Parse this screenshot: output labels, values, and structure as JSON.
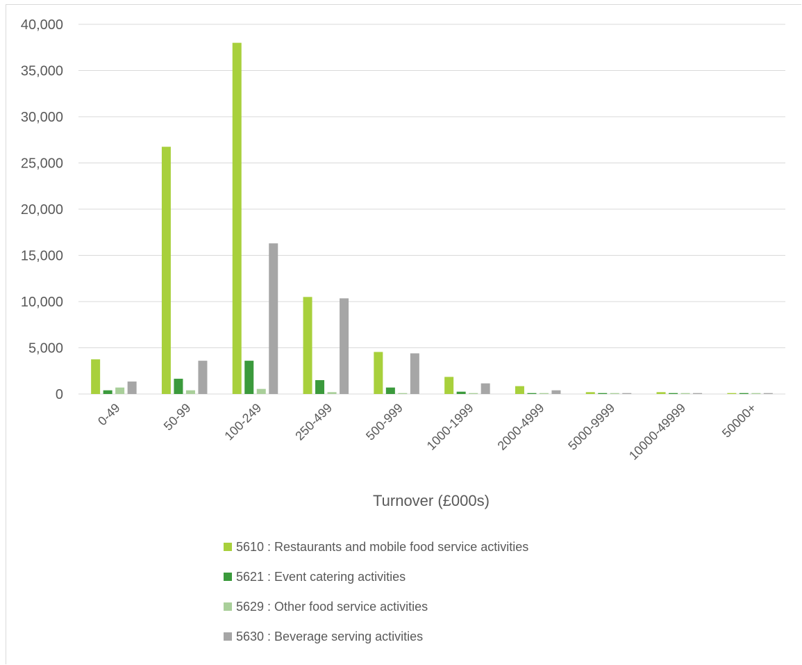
{
  "chart_data": {
    "type": "bar",
    "xlabel": "Turnover (£000s)",
    "ylabel": "",
    "title": "",
    "ylim": [
      0,
      40000
    ],
    "yticks": [
      0,
      5000,
      10000,
      15000,
      20000,
      25000,
      30000,
      35000,
      40000
    ],
    "ytick_labels": [
      "0",
      "5,000",
      "10,000",
      "15,000",
      "20,000",
      "25,000",
      "30,000",
      "35,000",
      "40,000"
    ],
    "grid": true,
    "legend_position": "bottom",
    "categories": [
      "0-49",
      "50-99",
      "100-249",
      "250-499",
      "500-999",
      "1000-1999",
      "2000-4999",
      "5000-9999",
      "10000-49999",
      "50000+"
    ],
    "series": [
      {
        "name": "5610 : Restaurants and mobile food service activities",
        "color": "#a8d03c",
        "values": [
          3750,
          26750,
          38000,
          10500,
          4550,
          1850,
          850,
          200,
          200,
          100
        ]
      },
      {
        "name": "5621 : Event catering activities",
        "color": "#3b9a3c",
        "values": [
          400,
          1650,
          3600,
          1500,
          700,
          250,
          100,
          100,
          100,
          100
        ]
      },
      {
        "name": "5629 : Other food service activities",
        "color": "#a9cf9a",
        "values": [
          700,
          400,
          550,
          200,
          100,
          100,
          100,
          100,
          100,
          100
        ]
      },
      {
        "name": "5630 : Beverage serving activities",
        "color": "#a6a6a6",
        "values": [
          1350,
          3600,
          16300,
          10350,
          4400,
          1150,
          400,
          100,
          100,
          100
        ]
      }
    ]
  }
}
